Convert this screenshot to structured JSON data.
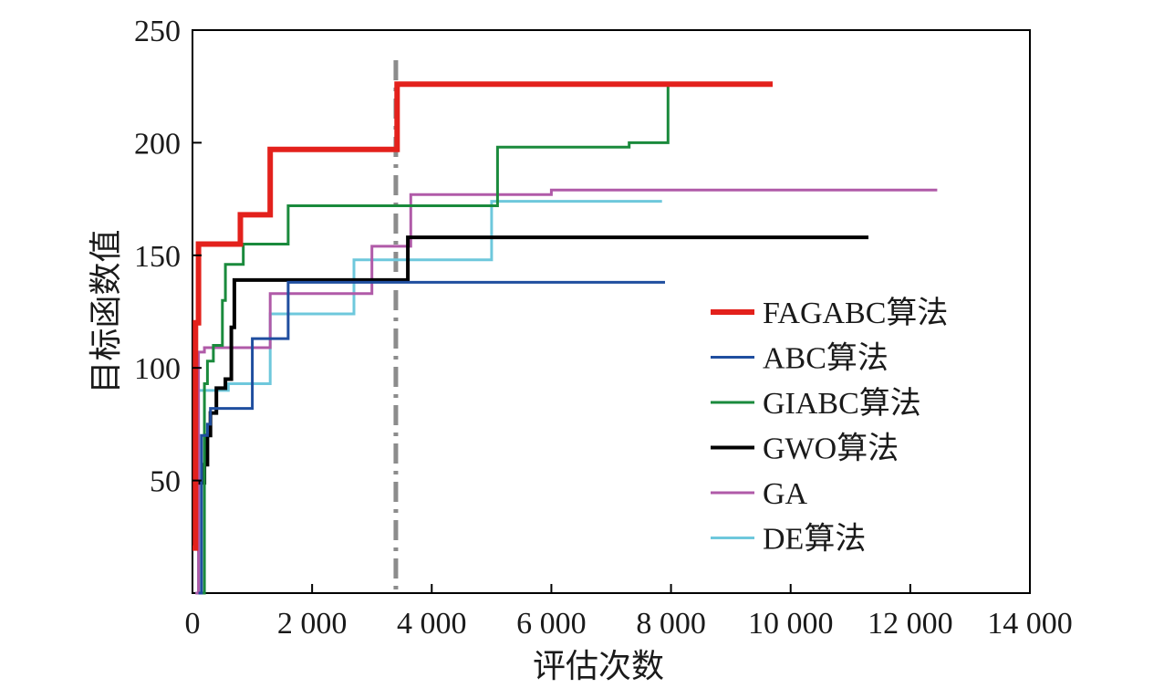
{
  "chart_data": {
    "type": "line",
    "xlabel": "评估次数",
    "ylabel": "目标函数值",
    "xlim": [
      0,
      14000
    ],
    "ylim": [
      0,
      250
    ],
    "xticks": [
      0,
      2000,
      4000,
      6000,
      8000,
      10000,
      12000,
      14000
    ],
    "xtick_labels": [
      "0",
      "2 000",
      "4 000",
      "6 000",
      "8 000",
      "10 000",
      "12 000",
      "14 000"
    ],
    "yticks": [
      50,
      100,
      150,
      200,
      250
    ],
    "ytick_labels": [
      "50",
      "100",
      "150",
      "200",
      "250"
    ],
    "grid": false,
    "legend_position": "right",
    "vline": {
      "x": 3400,
      "color": "#8c8c8c",
      "style": "dash-dot"
    },
    "series": [
      {
        "name": "FAGABC算法",
        "color": "#e3211c",
        "width": 6,
        "points": [
          [
            0,
            20
          ],
          [
            50,
            20
          ],
          [
            50,
            120
          ],
          [
            100,
            120
          ],
          [
            100,
            155
          ],
          [
            800,
            155
          ],
          [
            800,
            168
          ],
          [
            1300,
            168
          ],
          [
            1300,
            197
          ],
          [
            3420,
            197
          ],
          [
            3420,
            226
          ],
          [
            9700,
            226
          ]
        ]
      },
      {
        "name": "ABC算法",
        "color": "#1f4e9f",
        "width": 3,
        "points": [
          [
            100,
            0
          ],
          [
            150,
            0
          ],
          [
            150,
            70
          ],
          [
            250,
            70
          ],
          [
            250,
            75
          ],
          [
            300,
            75
          ],
          [
            300,
            82
          ],
          [
            1000,
            82
          ],
          [
            1000,
            113
          ],
          [
            1600,
            113
          ],
          [
            1600,
            138
          ],
          [
            7900,
            138
          ]
        ]
      },
      {
        "name": "GIABC算法",
        "color": "#1a8a3c",
        "width": 3,
        "points": [
          [
            150,
            0
          ],
          [
            200,
            0
          ],
          [
            200,
            93
          ],
          [
            250,
            93
          ],
          [
            250,
            103
          ],
          [
            350,
            103
          ],
          [
            350,
            110
          ],
          [
            500,
            110
          ],
          [
            500,
            130
          ],
          [
            550,
            130
          ],
          [
            550,
            146
          ],
          [
            850,
            146
          ],
          [
            850,
            155
          ],
          [
            1600,
            155
          ],
          [
            1600,
            172
          ],
          [
            5100,
            172
          ],
          [
            5100,
            198
          ],
          [
            7300,
            198
          ],
          [
            7300,
            200
          ],
          [
            7950,
            200
          ],
          [
            7950,
            226
          ],
          [
            9700,
            226
          ]
        ]
      },
      {
        "name": "GWO算法",
        "color": "#000000",
        "width": 4,
        "points": [
          [
            100,
            49
          ],
          [
            200,
            49
          ],
          [
            200,
            57
          ],
          [
            250,
            57
          ],
          [
            250,
            70
          ],
          [
            300,
            70
          ],
          [
            300,
            80
          ],
          [
            400,
            80
          ],
          [
            400,
            91
          ],
          [
            550,
            91
          ],
          [
            550,
            95
          ],
          [
            650,
            95
          ],
          [
            650,
            118
          ],
          [
            700,
            118
          ],
          [
            700,
            139
          ],
          [
            3600,
            139
          ],
          [
            3600,
            158
          ],
          [
            11300,
            158
          ]
        ]
      },
      {
        "name": "GA",
        "color": "#b05aa8",
        "width": 3,
        "points": [
          [
            50,
            0
          ],
          [
            100,
            0
          ],
          [
            100,
            107
          ],
          [
            200,
            107
          ],
          [
            200,
            109
          ],
          [
            1300,
            109
          ],
          [
            1300,
            133
          ],
          [
            3000,
            133
          ],
          [
            3000,
            154
          ],
          [
            3650,
            154
          ],
          [
            3650,
            177
          ],
          [
            6000,
            177
          ],
          [
            6000,
            179
          ],
          [
            12450,
            179
          ]
        ]
      },
      {
        "name": "DE算法",
        "color": "#6ec8dc",
        "width": 3,
        "points": [
          [
            50,
            0
          ],
          [
            100,
            0
          ],
          [
            100,
            90
          ],
          [
            600,
            90
          ],
          [
            600,
            93
          ],
          [
            1300,
            93
          ],
          [
            1300,
            124
          ],
          [
            2700,
            124
          ],
          [
            2700,
            148
          ],
          [
            5000,
            148
          ],
          [
            5000,
            174
          ],
          [
            7850,
            174
          ]
        ]
      }
    ]
  }
}
